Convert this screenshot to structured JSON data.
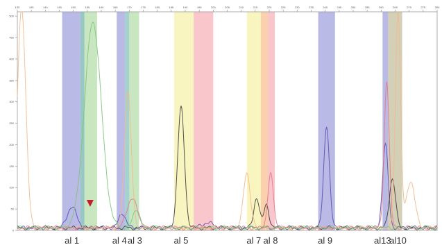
{
  "chart_data": {
    "type": "line",
    "title": "",
    "xlabel": "",
    "ylabel": "",
    "grid": false,
    "x_ticks": [
      "130",
      "135",
      "140",
      "145",
      "150",
      "155",
      "160",
      "165",
      "170",
      "175",
      "180",
      "185",
      "190",
      "195",
      "200",
      "205",
      "210",
      "215",
      "220",
      "225",
      "230",
      "235",
      "240",
      "245",
      "250",
      "255",
      "260",
      "265",
      "270",
      "275",
      "280"
    ],
    "y_ticks": [
      "0",
      "50",
      "100",
      "150",
      "200",
      "250",
      "300",
      "350",
      "400",
      "450",
      "500"
    ],
    "xlim": [
      130,
      280
    ],
    "ylim": [
      0,
      510
    ],
    "bands": [
      {
        "x0": 146.0,
        "x1": 152.5,
        "color": "#8f8fd6"
      },
      {
        "x0": 152.5,
        "x1": 154.0,
        "color": "#5aa7a0"
      },
      {
        "x0": 154.0,
        "x1": 158.5,
        "color": "#a6d99b"
      },
      {
        "x0": 165.5,
        "x1": 168.5,
        "color": "#8f8fd6"
      },
      {
        "x0": 168.5,
        "x1": 170.0,
        "color": "#6fb6b0"
      },
      {
        "x0": 170.0,
        "x1": 173.5,
        "color": "#a6d99b"
      },
      {
        "x0": 186.0,
        "x1": 193.0,
        "color": "#f5ef9a"
      },
      {
        "x0": 193.0,
        "x1": 200.0,
        "color": "#f6a3ad"
      },
      {
        "x0": 212.0,
        "x1": 217.0,
        "color": "#f5ef9a"
      },
      {
        "x0": 217.0,
        "x1": 219.5,
        "color": "#f7b57a"
      },
      {
        "x0": 219.5,
        "x1": 222.0,
        "color": "#f6a3ad"
      },
      {
        "x0": 237.5,
        "x1": 243.5,
        "color": "#8f8fd6"
      },
      {
        "x0": 260.5,
        "x1": 262.5,
        "color": "#8f8fd6"
      },
      {
        "x0": 262.5,
        "x1": 267.5,
        "color": "#b9b28a"
      }
    ],
    "series": [
      {
        "color": "#5a4fb0",
        "peaks": [
          {
            "x": 149.5,
            "y": 50,
            "w": 1.6
          },
          {
            "x": 167.5,
            "y": 35,
            "w": 1.2
          },
          {
            "x": 198.0,
            "y": 12,
            "w": 2.0
          },
          {
            "x": 240.5,
            "y": 240,
            "w": 1.0
          },
          {
            "x": 261.5,
            "y": 195,
            "w": 1.0
          }
        ]
      },
      {
        "color": "#3d3d3d",
        "peaks": [
          {
            "x": 188.5,
            "y": 280,
            "w": 1.2
          },
          {
            "x": 215.5,
            "y": 70,
            "w": 1.0
          },
          {
            "x": 219.0,
            "y": 55,
            "w": 0.9
          },
          {
            "x": 264.0,
            "y": 115,
            "w": 1.1
          }
        ]
      },
      {
        "color": "#e27a8c",
        "peaks": [
          {
            "x": 171.0,
            "y": 70,
            "w": 1.8
          },
          {
            "x": 220.5,
            "y": 125,
            "w": 1.0
          },
          {
            "x": 262.0,
            "y": 345,
            "w": 0.9
          }
        ]
      },
      {
        "color": "#f2b98c",
        "peaks": [
          {
            "x": 131.5,
            "y": 510,
            "w": 1.5
          },
          {
            "x": 169.5,
            "y": 320,
            "w": 1.2
          },
          {
            "x": 212.0,
            "y": 130,
            "w": 1.2
          },
          {
            "x": 266.0,
            "y": 510,
            "w": 0.9
          },
          {
            "x": 270.5,
            "y": 110,
            "w": 1.5
          }
        ]
      },
      {
        "color": "#7fc47a",
        "peaks": [
          {
            "x": 157.0,
            "y": 480,
            "w": 3.0
          },
          {
            "x": 172.5,
            "y": 45,
            "w": 1.2
          }
        ]
      }
    ],
    "alleles": [
      {
        "label": "al 1",
        "x": 149.5
      },
      {
        "label": "al 4",
        "x": 166.5
      },
      {
        "label": "al 3",
        "x": 172.0
      },
      {
        "label": "al 5",
        "x": 188.5
      },
      {
        "label": "al 7",
        "x": 214.5
      },
      {
        "label": "al 8",
        "x": 220.5
      },
      {
        "label": "al 9",
        "x": 240.0
      },
      {
        "label": "al13",
        "x": 260.5
      },
      {
        "label": "al10",
        "x": 266.0
      }
    ],
    "marker": {
      "x": 156.0,
      "y": 55,
      "color": "#c0202a"
    }
  }
}
